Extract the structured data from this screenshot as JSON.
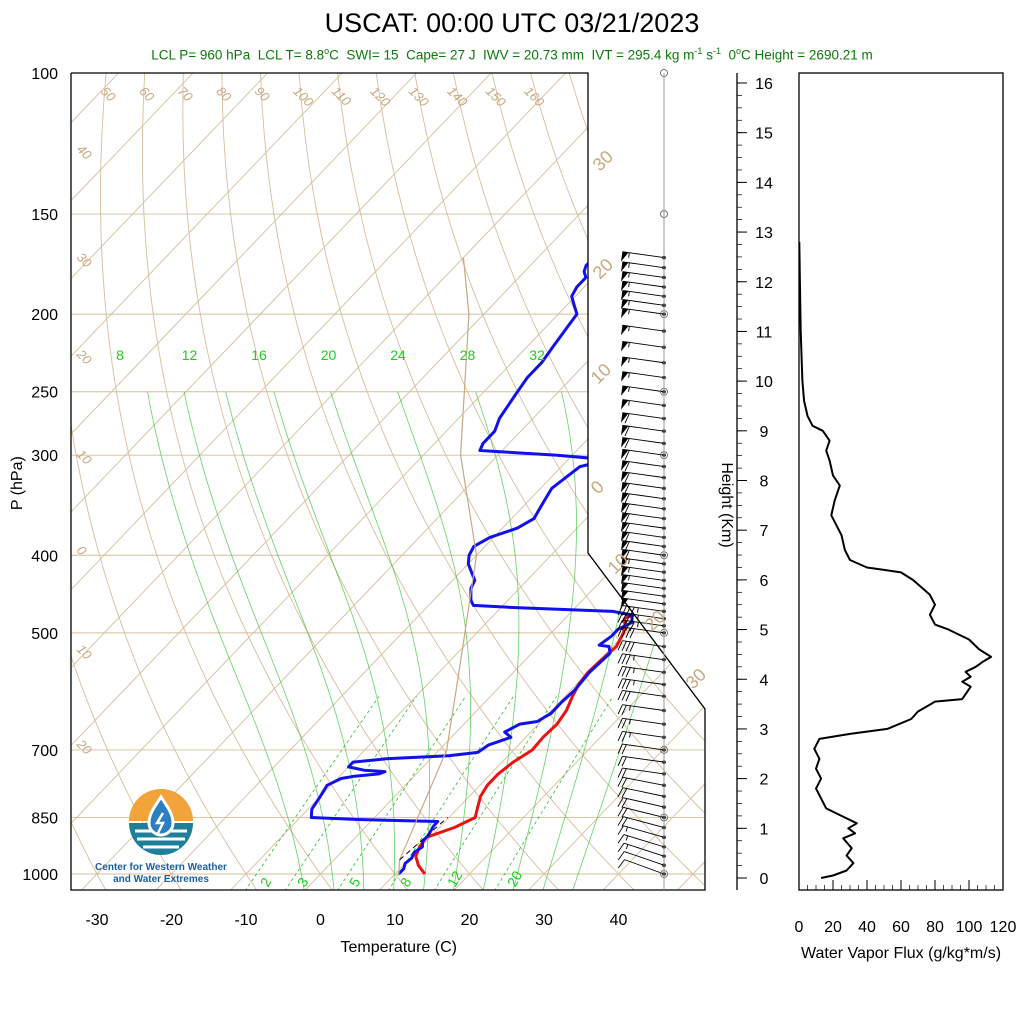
{
  "header": {
    "title": "USCAT: 00:00 UTC 03/21/2023",
    "lcl_p": "LCL P= 960 hPa",
    "lcl_t": "LCL T= 8.8",
    "lcl_t_unit": "C",
    "swi": "SWI= 15",
    "cape": "Cape= 27 J",
    "iwv": "IWV = 20.73 mm",
    "ivt": "IVT = 295.4 kg m",
    "ivt_exp1": "-1",
    "ivt_mid": " s",
    "ivt_exp2": "-1",
    "zero_height": "0",
    "zero_height_rest": "C Height = 2690.21 m"
  },
  "logo": {
    "line1": "Center for Western Weather",
    "line2": "and Water Extremes",
    "colors": {
      "sun": "#f2a33a",
      "water": "#1f7f9a",
      "drop": "#2a7fc0"
    }
  },
  "colors": {
    "temperature": "#ee1111",
    "dewpoint": "#1111ee",
    "dry_adiabat": "#d8bd9a",
    "isotherm": "#d8bd9a",
    "moist_adiabat": "#20c020",
    "mixing_ratio": "#20c020",
    "parcel": "#c8a886",
    "flux": "#000000"
  },
  "chart_data": [
    {
      "type": "line",
      "title": "USCAT: 00:00 UTC 03/21/2023",
      "chart_kind": "Skew-T log-P diagram",
      "xlabel": "Temperature (C)",
      "ylabel": "P (hPa)",
      "xlim": [
        -35,
        50
      ],
      "ylim": [
        1050,
        100
      ],
      "y_scale": "log",
      "x_ticks": [
        -30,
        -20,
        -10,
        0,
        10,
        20,
        30,
        40
      ],
      "y_ticks": [
        100,
        150,
        200,
        250,
        300,
        400,
        500,
        700,
        850,
        1000
      ],
      "dry_adiabat_labels": [
        "50",
        "60",
        "70",
        "80",
        "90",
        "100",
        "110",
        "120",
        "130",
        "140",
        "150",
        "160"
      ],
      "dry_adiabat_side_labels": [
        "40",
        "30",
        "20",
        "10",
        "0",
        "10",
        "20"
      ],
      "isotherm_labels": [
        "30",
        "20",
        "10",
        "0",
        "10",
        "20",
        "30"
      ],
      "mixing_ratio_top_labels": [
        "8",
        "12",
        "16",
        "20",
        "24",
        "28",
        "32"
      ],
      "mixing_ratio_bottom_labels": [
        "2",
        "3",
        "5",
        "8",
        "12",
        "20"
      ],
      "series": [
        {
          "name": "",
          "role": "temperature",
          "points": [
            [
              14.0,
              1000
            ],
            [
              12.0,
              975
            ],
            [
              10.5,
              950
            ],
            [
              9.8,
              925
            ],
            [
              9.5,
              900
            ],
            [
              12.0,
              875
            ],
            [
              13.5,
              850
            ],
            [
              12.5,
              825
            ],
            [
              11.5,
              800
            ],
            [
              11.0,
              775
            ],
            [
              11.0,
              750
            ],
            [
              11.5,
              725
            ],
            [
              12.5,
              700
            ],
            [
              12.3,
              675
            ],
            [
              12.5,
              650
            ],
            [
              12.0,
              625
            ],
            [
              11.0,
              600
            ],
            [
              10.3,
              580
            ],
            [
              10.0,
              560
            ],
            [
              10.2,
              540
            ],
            [
              10.5,
              520
            ],
            [
              9.7,
              500
            ],
            [
              9.0,
              490
            ],
            [
              8.0,
              480
            ],
            [
              9.0,
              470
            ],
            [
              8.5,
              460
            ],
            [
              8.0,
              450
            ],
            [
              7.0,
              440
            ],
            [
              5.5,
              430
            ],
            [
              4.0,
              420
            ],
            [
              2.5,
              400
            ],
            [
              1.5,
              390
            ],
            [
              0.5,
              380
            ],
            [
              0.3,
              370
            ],
            [
              0.0,
              360
            ],
            [
              -1.0,
              350
            ],
            [
              -2.0,
              340
            ],
            [
              -3.0,
              330
            ],
            [
              -4.0,
              320
            ],
            [
              -5.0,
              310
            ],
            [
              -6.0,
              300
            ],
            [
              -5.0,
              290
            ],
            [
              -5.5,
              280
            ],
            [
              -6.8,
              270
            ],
            [
              -8.0,
              260
            ],
            [
              -9.5,
              250
            ],
            [
              -11.0,
              240
            ],
            [
              -12.5,
              230
            ],
            [
              -13.5,
              220
            ],
            [
              -14.5,
              210
            ],
            [
              -15.5,
              200
            ],
            [
              -16.0,
              195
            ],
            [
              -16.0,
              190
            ],
            [
              -16.5,
              185
            ],
            [
              -15.5,
              180
            ],
            [
              -14.5,
              177
            ],
            [
              -13.5,
              174
            ],
            [
              -12.5,
              172
            ],
            [
              -12.0,
              170
            ]
          ]
        },
        {
          "name": "",
          "role": "dewpoint",
          "points": [
            [
              10.5,
              1000
            ],
            [
              10.5,
              985
            ],
            [
              10.0,
              970
            ],
            [
              10.2,
              955
            ],
            [
              9.8,
              940
            ],
            [
              10.2,
              925
            ],
            [
              9.5,
              910
            ],
            [
              9.5,
              895
            ],
            [
              9.0,
              870
            ],
            [
              9.0,
              860
            ],
            [
              -2.0,
              855
            ],
            [
              -8.5,
              850
            ],
            [
              -9.5,
              830
            ],
            [
              -10.0,
              800
            ],
            [
              -10.5,
              775
            ],
            [
              -9.5,
              760
            ],
            [
              -8.0,
              755
            ],
            [
              -5.0,
              750
            ],
            [
              -4.5,
              745
            ],
            [
              -7.5,
              742
            ],
            [
              -10.0,
              735
            ],
            [
              -10.0,
              725
            ],
            [
              -6.0,
              718
            ],
            [
              2.0,
              712
            ],
            [
              5.5,
              705
            ],
            [
              6.0,
              690
            ],
            [
              8.0,
              675
            ],
            [
              6.5,
              665
            ],
            [
              7.5,
              650
            ],
            [
              9.5,
              645
            ],
            [
              10.3,
              630
            ],
            [
              10.3,
              610
            ],
            [
              10.5,
              590
            ],
            [
              10.2,
              560
            ],
            [
              10.5,
              530
            ],
            [
              9.5,
              520
            ],
            [
              8.0,
              518
            ],
            [
              8.5,
              505
            ],
            [
              8.5,
              495
            ],
            [
              9.5,
              485
            ],
            [
              8.5,
              475
            ],
            [
              5.5,
              470
            ],
            [
              -8.0,
              465
            ],
            [
              -14.0,
              462
            ],
            [
              -15.0,
              455
            ],
            [
              -16.5,
              440
            ],
            [
              -17.0,
              430
            ],
            [
              -18.5,
              420
            ],
            [
              -20.0,
              410
            ],
            [
              -21.0,
              400
            ],
            [
              -21.5,
              390
            ],
            [
              -20.5,
              380
            ],
            [
              -18.0,
              370
            ],
            [
              -17.0,
              360
            ],
            [
              -17.5,
              350
            ],
            [
              -18.0,
              340
            ],
            [
              -18.5,
              330
            ],
            [
              -18.0,
              320
            ],
            [
              -17.5,
              310
            ],
            [
              -14.5,
              304
            ],
            [
              -22.0,
              300
            ],
            [
              -33.0,
              296
            ],
            [
              -33.5,
              290
            ],
            [
              -33.5,
              280
            ],
            [
              -34.5,
              270
            ],
            [
              -35.0,
              260
            ],
            [
              -35.5,
              250
            ],
            [
              -36.0,
              240
            ],
            [
              -36.0,
              230
            ],
            [
              -36.5,
              220
            ],
            [
              -37.0,
              210
            ],
            [
              -37.5,
              200
            ],
            [
              -39.0,
              195
            ],
            [
              -40.5,
              190
            ],
            [
              -41.0,
              185
            ],
            [
              -41.0,
              180
            ],
            [
              -42.0,
              177
            ],
            [
              -42.5,
              174
            ],
            [
              -42.5,
              170
            ]
          ]
        },
        {
          "name": "",
          "role": "parcel",
          "points": [
            [
              10.5,
              1000
            ],
            [
              8.8,
              960
            ],
            [
              1.0,
              700
            ],
            [
              -8.0,
              550
            ],
            [
              -20.0,
              400
            ],
            [
              -35.0,
              300
            ],
            [
              -52.0,
              200
            ],
            [
              -60.0,
              170
            ]
          ]
        }
      ],
      "wind_barbs": {
        "levels_hPa": [
          1000,
          975,
          950,
          925,
          900,
          875,
          850,
          825,
          800,
          775,
          750,
          725,
          700,
          675,
          650,
          625,
          600,
          580,
          560,
          540,
          520,
          500,
          490,
          480,
          470,
          460,
          450,
          440,
          430,
          420,
          410,
          400,
          390,
          380,
          370,
          360,
          350,
          340,
          330,
          320,
          310,
          300,
          290,
          280,
          270,
          260,
          250,
          240,
          230,
          220,
          210,
          200,
          195,
          190,
          185,
          180,
          175,
          170
        ],
        "speed_kt": [
          10,
          10,
          15,
          15,
          15,
          20,
          20,
          20,
          20,
          20,
          20,
          20,
          20,
          25,
          25,
          25,
          30,
          35,
          35,
          35,
          40,
          40,
          45,
          45,
          45,
          50,
          50,
          50,
          55,
          55,
          55,
          60,
          60,
          60,
          60,
          60,
          60,
          60,
          60,
          60,
          60,
          60,
          60,
          60,
          60,
          55,
          55,
          55,
          55,
          55,
          55,
          55,
          55,
          55,
          55,
          55,
          55,
          55
        ]
      }
    },
    {
      "type": "line",
      "xlabel": "Water Vapor Flux (g/kg*m/s)",
      "ylabel": "Height (Km)",
      "xlim": [
        0,
        120
      ],
      "ylim": [
        -0.2,
        16.3
      ],
      "x_ticks": [
        0,
        20,
        40,
        60,
        80,
        100,
        120
      ],
      "y_ticks": [
        0,
        1,
        2,
        3,
        4,
        5,
        6,
        7,
        8,
        9,
        10,
        11,
        12,
        13,
        14,
        15,
        16
      ],
      "series": [
        {
          "name": "",
          "points": [
            [
              13,
              0.0
            ],
            [
              20,
              0.05
            ],
            [
              28,
              0.15
            ],
            [
              32,
              0.3
            ],
            [
              28,
              0.45
            ],
            [
              31,
              0.6
            ],
            [
              26,
              0.8
            ],
            [
              33,
              0.9
            ],
            [
              29,
              1.0
            ],
            [
              34,
              1.1
            ],
            [
              25,
              1.25
            ],
            [
              16,
              1.4
            ],
            [
              13,
              1.6
            ],
            [
              10,
              1.8
            ],
            [
              13,
              2.0
            ],
            [
              10,
              2.2
            ],
            [
              12,
              2.4
            ],
            [
              9,
              2.6
            ],
            [
              12,
              2.8
            ],
            [
              30,
              2.9
            ],
            [
              52,
              3.0
            ],
            [
              66,
              3.2
            ],
            [
              70,
              3.35
            ],
            [
              75,
              3.45
            ],
            [
              80,
              3.55
            ],
            [
              96,
              3.6
            ],
            [
              101,
              3.85
            ],
            [
              96,
              3.95
            ],
            [
              101,
              4.05
            ],
            [
              98,
              4.15
            ],
            [
              104,
              4.25
            ],
            [
              108,
              4.35
            ],
            [
              113,
              4.45
            ],
            [
              106,
              4.6
            ],
            [
              100,
              4.8
            ],
            [
              88,
              5.0
            ],
            [
              80,
              5.1
            ],
            [
              77,
              5.3
            ],
            [
              80,
              5.5
            ],
            [
              77,
              5.7
            ],
            [
              72,
              5.85
            ],
            [
              67,
              6.0
            ],
            [
              60,
              6.15
            ],
            [
              50,
              6.2
            ],
            [
              40,
              6.25
            ],
            [
              30,
              6.4
            ],
            [
              27,
              6.6
            ],
            [
              25,
              6.9
            ],
            [
              22,
              7.1
            ],
            [
              19,
              7.3
            ],
            [
              21,
              7.6
            ],
            [
              24,
              7.9
            ],
            [
              20,
              8.1
            ],
            [
              18,
              8.4
            ],
            [
              16,
              8.6
            ],
            [
              18,
              8.8
            ],
            [
              14,
              9.0
            ],
            [
              8,
              9.1
            ],
            [
              5,
              9.3
            ],
            [
              3,
              9.6
            ],
            [
              2,
              10.0
            ],
            [
              1,
              11.0
            ],
            [
              0.5,
              12.0
            ],
            [
              0.2,
              12.8
            ]
          ]
        }
      ]
    }
  ]
}
